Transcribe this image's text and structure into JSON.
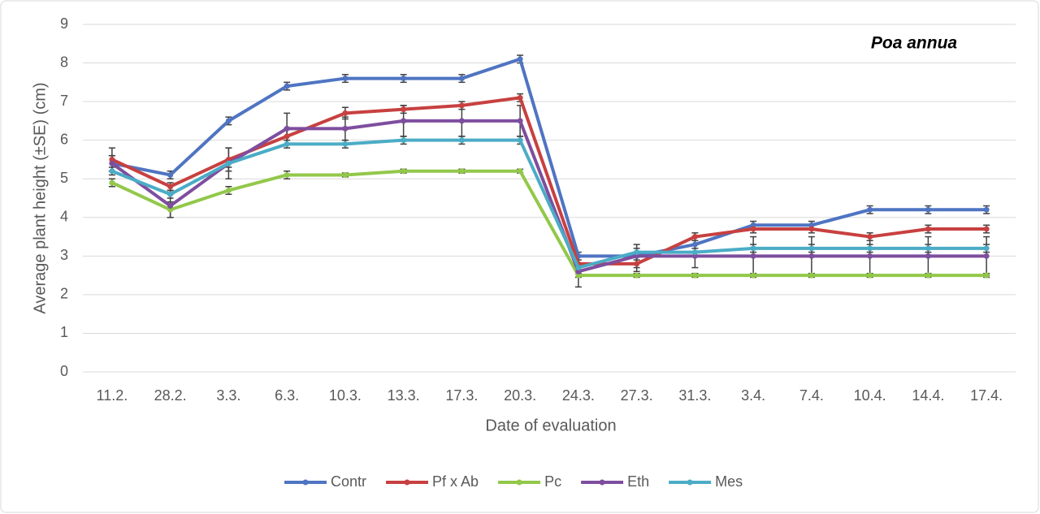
{
  "chart_data": {
    "type": "line",
    "title": "Poa annua",
    "x_label": "Date of evaluation",
    "y_label": "Average plant height (±SE) (cm)",
    "categories": [
      "11.2.",
      "28.2.",
      "3.3.",
      "6.3.",
      "10.3.",
      "13.3.",
      "17.3.",
      "20.3.",
      "24.3.",
      "27.3.",
      "31.3.",
      "3.4.",
      "7.4.",
      "10.4.",
      "14.4.",
      "17.4."
    ],
    "series": [
      {
        "name": "Contr",
        "color": "#4f74c2",
        "values": [
          5.4,
          5.1,
          6.5,
          7.4,
          7.6,
          7.6,
          7.6,
          8.1,
          3.0,
          3.0,
          3.3,
          3.8,
          3.8,
          4.2,
          4.2,
          4.2
        ],
        "errors": [
          0.2,
          0.1,
          0.1,
          0.1,
          0.1,
          0.1,
          0.1,
          0.1,
          0.1,
          0.1,
          0.2,
          0.1,
          0.1,
          0.1,
          0.1,
          0.1
        ]
      },
      {
        "name": "Pf x Ab",
        "color": "#c84040",
        "values": [
          5.5,
          4.8,
          5.5,
          6.1,
          6.7,
          6.8,
          6.9,
          7.1,
          2.8,
          2.8,
          3.5,
          3.7,
          3.7,
          3.5,
          3.7,
          3.7
        ],
        "errors": [
          0.3,
          0.1,
          0.3,
          0.2,
          0.15,
          0.1,
          0.1,
          0.1,
          0.2,
          0.2,
          0.1,
          0.1,
          0.1,
          0.1,
          0.1,
          0.1
        ]
      },
      {
        "name": "Pc",
        "color": "#92c84a",
        "values": [
          4.9,
          4.2,
          4.7,
          5.1,
          5.1,
          5.2,
          5.2,
          5.2,
          2.5,
          2.5,
          2.5,
          2.5,
          2.5,
          2.5,
          2.5,
          2.5
        ],
        "errors": [
          0.1,
          0.2,
          0.1,
          0.1,
          0.05,
          0.05,
          0.05,
          0.05,
          0.05,
          0.05,
          0.05,
          0.05,
          0.05,
          0.05,
          0.05,
          0.05
        ]
      },
      {
        "name": "Eth",
        "color": "#7e4e9e",
        "values": [
          5.4,
          4.3,
          5.4,
          6.3,
          6.3,
          6.5,
          6.5,
          6.5,
          2.6,
          3.0,
          3.0,
          3.0,
          3.0,
          3.0,
          3.0,
          3.0
        ],
        "errors": [
          0.2,
          0.3,
          0.4,
          0.4,
          0.3,
          0.4,
          0.4,
          0.4,
          0.4,
          0.3,
          0.3,
          0.5,
          0.5,
          0.5,
          0.5,
          0.5
        ]
      },
      {
        "name": "Mes",
        "color": "#4bacc6",
        "values": [
          5.2,
          4.6,
          5.4,
          5.9,
          5.9,
          6.0,
          6.0,
          6.0,
          2.7,
          3.1,
          3.1,
          3.2,
          3.2,
          3.2,
          3.2,
          3.2
        ],
        "errors": [
          0.1,
          0.1,
          0.1,
          0.1,
          0.1,
          0.1,
          0.1,
          0.1,
          0.1,
          0.1,
          0.1,
          0.1,
          0.1,
          0.1,
          0.1,
          0.1
        ]
      }
    ],
    "ylim": [
      0,
      9
    ],
    "yticks": [
      0,
      1,
      2,
      3,
      4,
      5,
      6,
      7,
      8,
      9
    ],
    "grid": true,
    "legend": "bottom"
  }
}
